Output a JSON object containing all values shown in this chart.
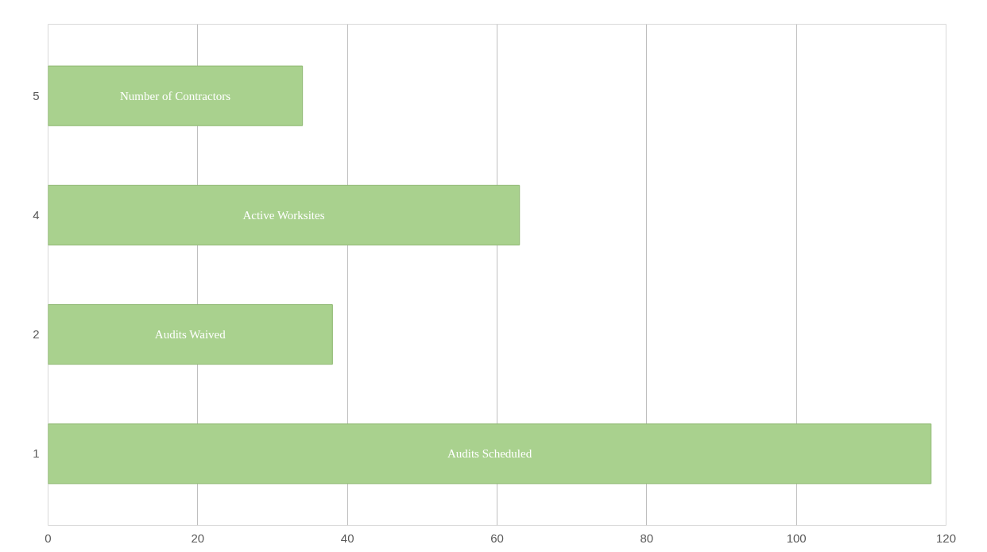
{
  "chart_data": {
    "type": "bar",
    "orientation": "horizontal",
    "categories": [
      "5",
      "4",
      "2",
      "1"
    ],
    "values": [
      34,
      63,
      38,
      118
    ],
    "value_labels": [
      "Number of Contractors",
      "Active Worksites",
      "Audits Waived",
      "Audits Scheduled"
    ],
    "color": "#a9d18e",
    "xlim": [
      0,
      120
    ],
    "xticks": [
      0,
      20,
      40,
      60,
      80,
      100,
      120
    ],
    "grid": "x"
  }
}
